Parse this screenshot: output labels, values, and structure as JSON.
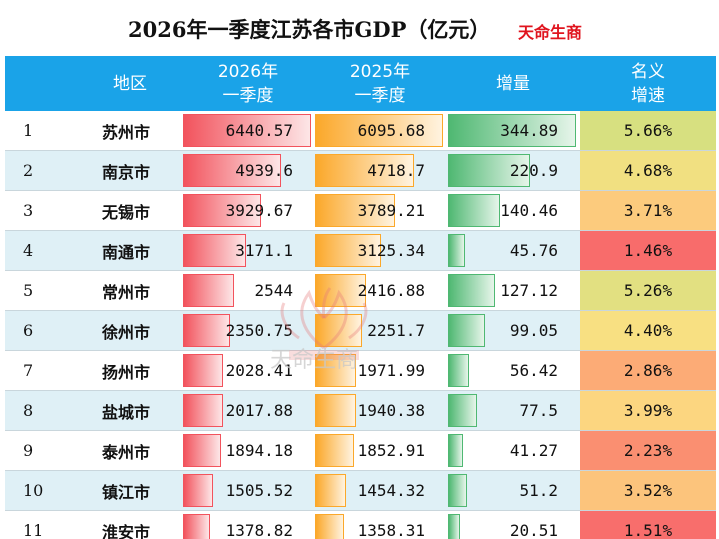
{
  "title": "2026年一季度江苏各市GDP（亿元）",
  "brand": "天命生商",
  "watermark_text": "天命生商",
  "headers": {
    "region": "地区",
    "y2026_line1": "2026年",
    "y2026_line2": "一季度",
    "y2025_line1": "2025年",
    "y2025_line2": "一季度",
    "increase": "增量",
    "rate_line1": "名义",
    "rate_line2": "增速"
  },
  "colors": {
    "header_bg": "#1aa3e8",
    "bar_2026": "#f2535d",
    "bar_2025": "#fba82a",
    "bar_increase": "#4fb872",
    "brand": "#e0141e"
  },
  "rows": [
    {
      "rank": "1",
      "region": "苏州市",
      "v2026": "6440.57",
      "v2025": "6095.68",
      "inc": "344.89",
      "rate": "5.66%",
      "rate_value": 5.66
    },
    {
      "rank": "2",
      "region": "南京市",
      "v2026": "4939.6",
      "v2025": "4718.7",
      "inc": "220.9",
      "rate": "4.68%",
      "rate_value": 4.68
    },
    {
      "rank": "3",
      "region": "无锡市",
      "v2026": "3929.67",
      "v2025": "3789.21",
      "inc": "140.46",
      "rate": "3.71%",
      "rate_value": 3.71
    },
    {
      "rank": "4",
      "region": "南通市",
      "v2026": "3171.1",
      "v2025": "3125.34",
      "inc": "45.76",
      "rate": "1.46%",
      "rate_value": 1.46
    },
    {
      "rank": "5",
      "region": "常州市",
      "v2026": "2544",
      "v2025": "2416.88",
      "inc": "127.12",
      "rate": "5.26%",
      "rate_value": 5.26
    },
    {
      "rank": "6",
      "region": "徐州市",
      "v2026": "2350.75",
      "v2025": "2251.7",
      "inc": "99.05",
      "rate": "4.40%",
      "rate_value": 4.4
    },
    {
      "rank": "7",
      "region": "扬州市",
      "v2026": "2028.41",
      "v2025": "1971.99",
      "inc": "56.42",
      "rate": "2.86%",
      "rate_value": 2.86
    },
    {
      "rank": "8",
      "region": "盐城市",
      "v2026": "2017.88",
      "v2025": "1940.38",
      "inc": "77.5",
      "rate": "3.99%",
      "rate_value": 3.99
    },
    {
      "rank": "9",
      "region": "泰州市",
      "v2026": "1894.18",
      "v2025": "1852.91",
      "inc": "41.27",
      "rate": "2.23%",
      "rate_value": 2.23
    },
    {
      "rank": "10",
      "region": "镇江市",
      "v2026": "1505.52",
      "v2025": "1454.32",
      "inc": "51.2",
      "rate": "3.52%",
      "rate_value": 3.52
    },
    {
      "rank": "11",
      "region": "淮安市",
      "v2026": "1378.82",
      "v2025": "1358.31",
      "inc": "20.51",
      "rate": "1.51%",
      "rate_value": 1.51
    }
  ]
}
